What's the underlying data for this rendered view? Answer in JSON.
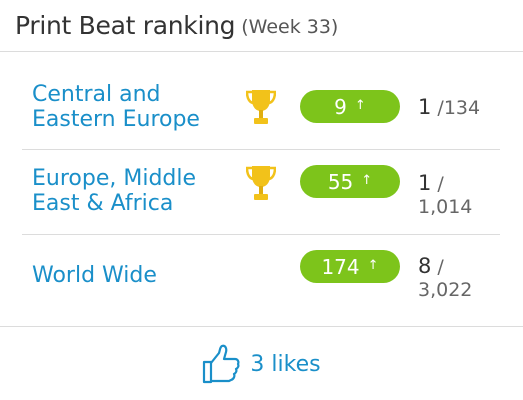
{
  "header": {
    "title": "Print Beat ranking",
    "subtitle": "(Week 33)"
  },
  "rows": [
    {
      "region_line1": "Central and",
      "region_line2": "Eastern Europe",
      "trophy": "trophy-icon",
      "score": "9",
      "trend": "up-arrow-icon",
      "rank_pos": "1",
      "rank_total_inline": "/134"
    },
    {
      "region_line1": "Europe, Middle",
      "region_line2": "East & Africa",
      "trophy": "trophy-icon",
      "score": "55",
      "trend": "up-arrow-icon",
      "rank_pos": "1",
      "rank_slash": "/",
      "rank_total": "1,014"
    },
    {
      "region_line1": "World Wide",
      "score": "174",
      "trend": "up-arrow-icon",
      "rank_pos": "8",
      "rank_slash": "/",
      "rank_total": "3,022"
    }
  ],
  "footer": {
    "likes_label": "3 likes",
    "icon": "thumbs-up-icon"
  },
  "colors": {
    "accent_blue": "#1a8fc9",
    "pill_green": "#7dc41b",
    "trophy_gold": "#f2c21a",
    "divider": "#dcdcdc"
  }
}
